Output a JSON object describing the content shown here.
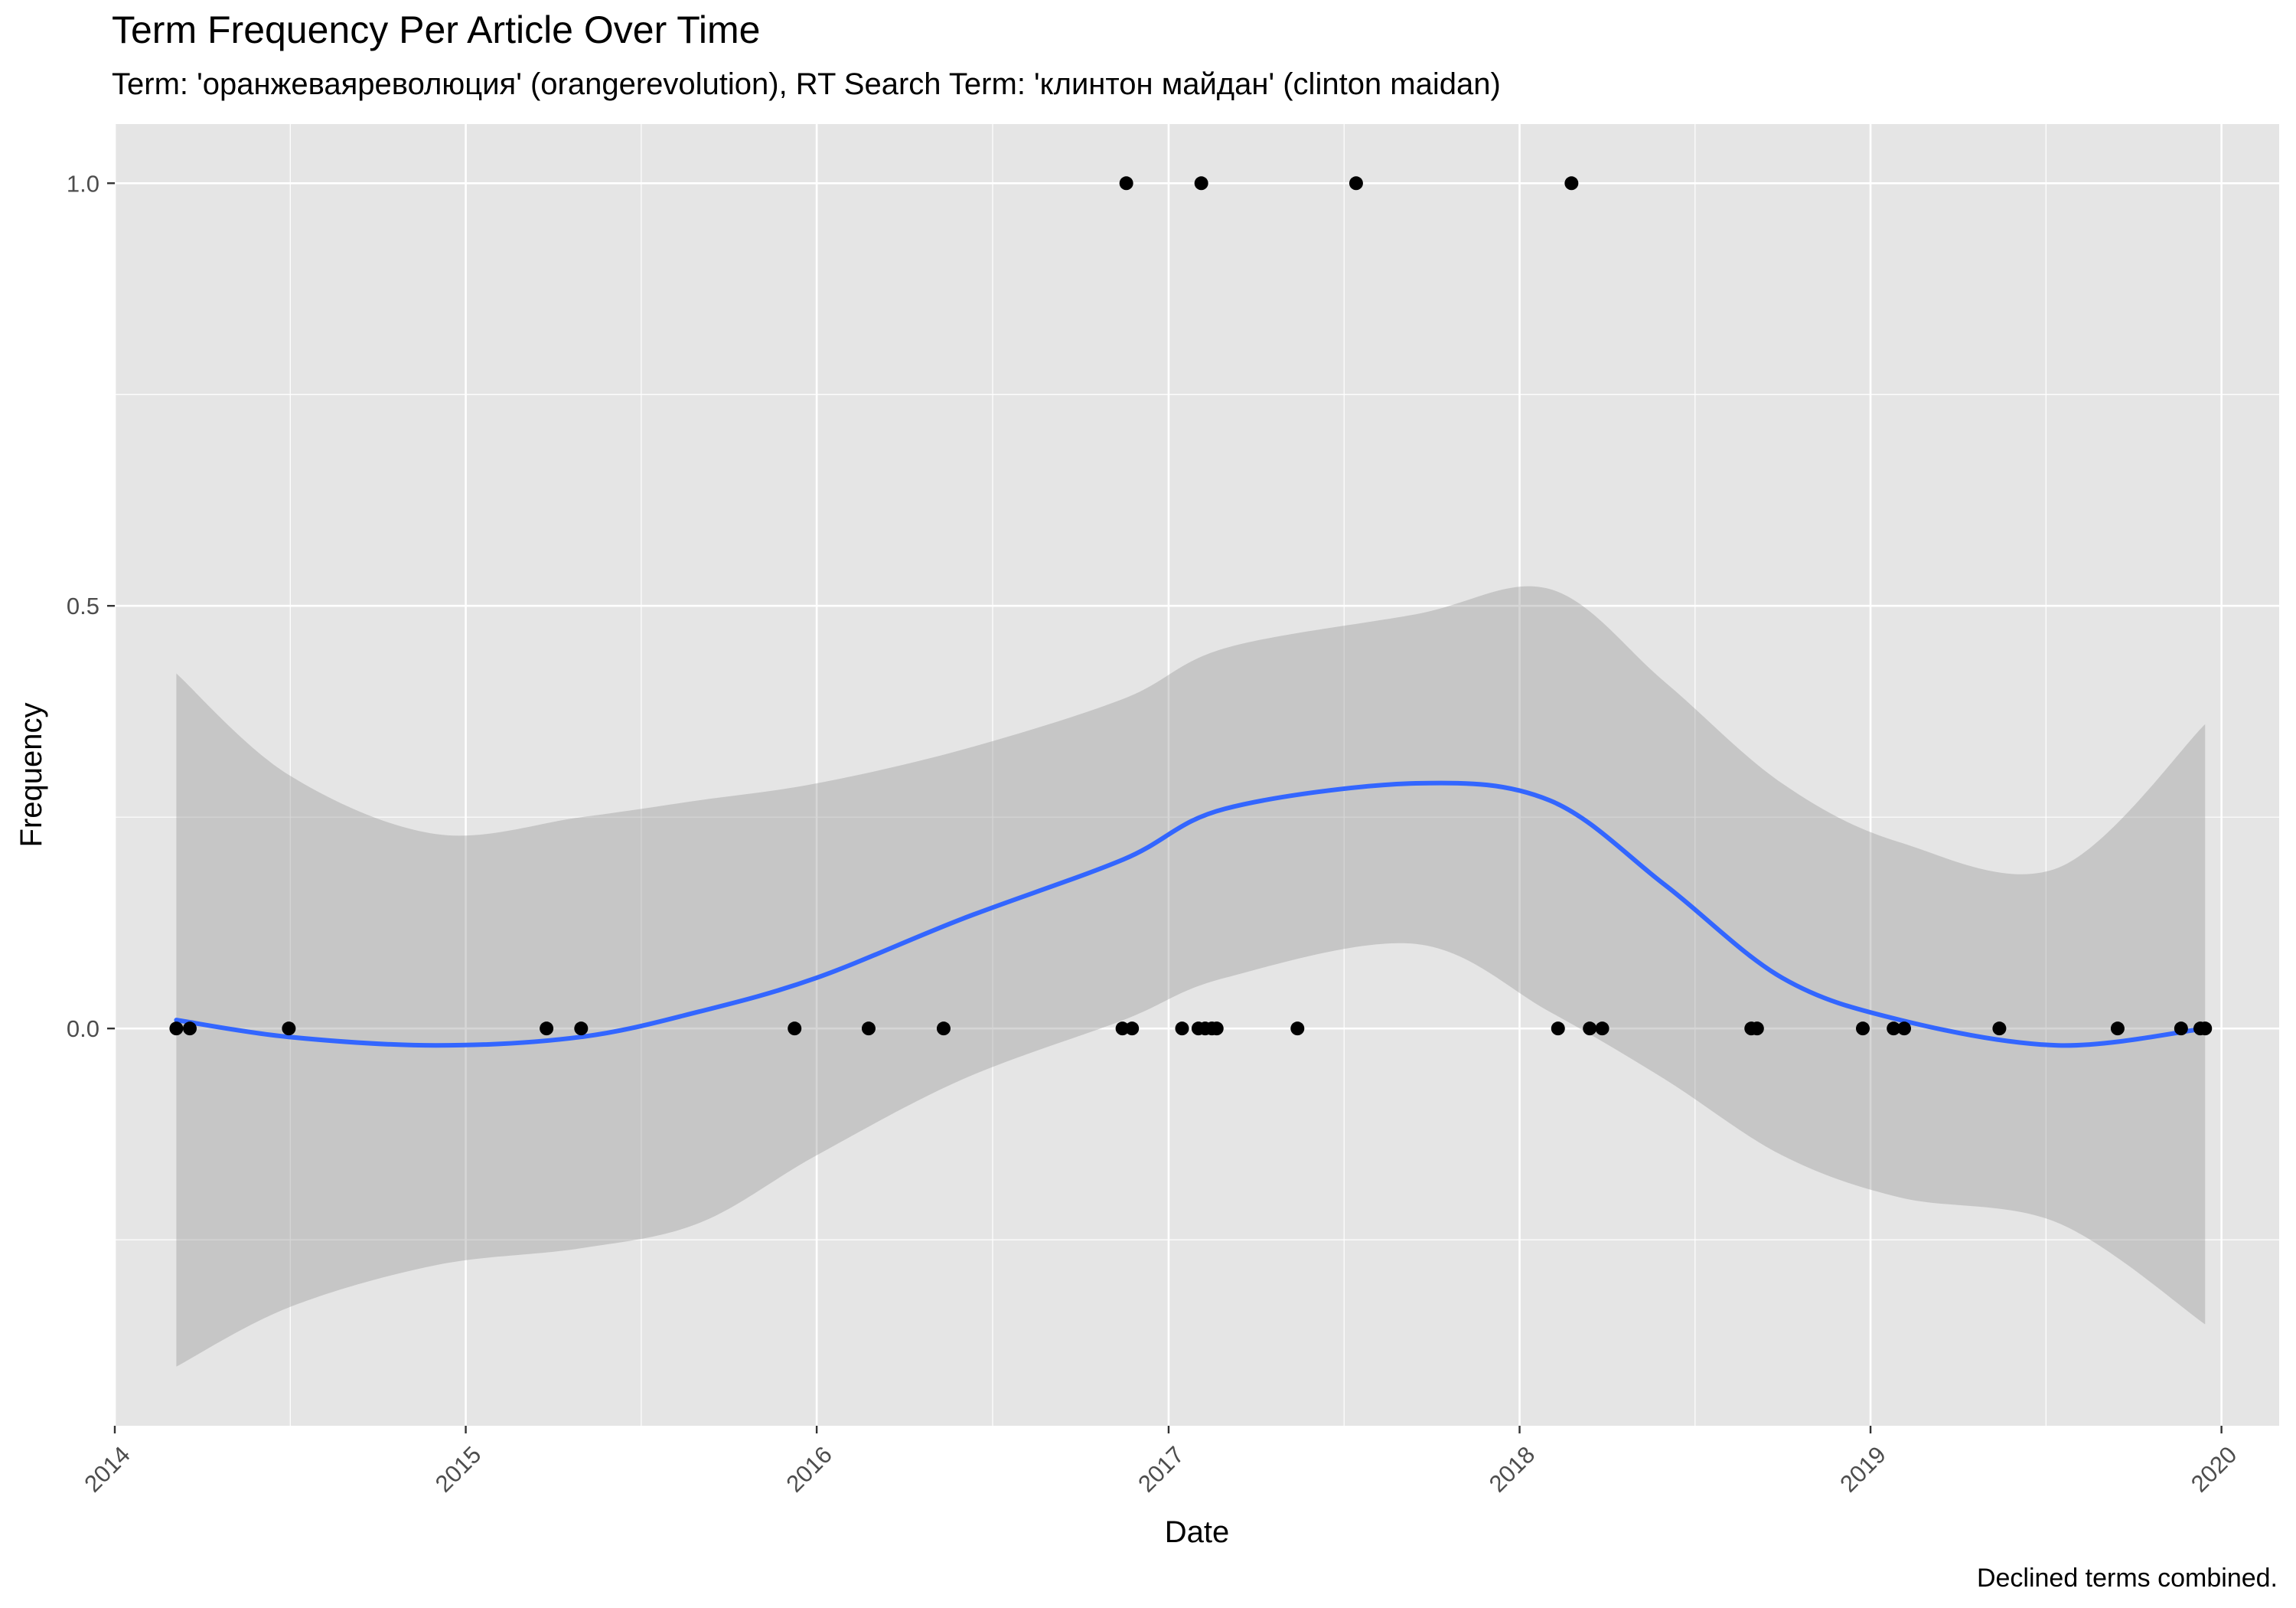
{
  "chart_data": {
    "type": "scatter",
    "title": "Term Frequency Per Article Over Time",
    "subtitle": "Term: 'оранжеваяреволюция' (orangerevolution), RT Search Term: 'клинтон майдан' (clinton maidan)",
    "caption": "Declined terms combined.",
    "xlabel": "Date",
    "ylabel": "Frequency",
    "x_tick_labels": [
      "2014",
      "2015",
      "2016",
      "2017",
      "2018",
      "2019",
      "2020"
    ],
    "y_tick_labels": [
      "0.0",
      "0.5",
      "1.0"
    ],
    "xlim": [
      "2014-01-01",
      "2020-03-01"
    ],
    "ylim": [
      -0.47,
      1.07
    ],
    "grid": true,
    "colors": {
      "panel_background": "#e5e5e5",
      "grid": "#ffffff",
      "points": "#000000",
      "smooth_line": "#3366ff",
      "confidence_band": "#999999"
    },
    "series": [
      {
        "type": "scatter",
        "points": [
          {
            "x": "2014-03-06",
            "y": 0
          },
          {
            "x": "2014-03-20",
            "y": 0
          },
          {
            "x": "2014-07-01",
            "y": 0
          },
          {
            "x": "2015-03-26",
            "y": 0
          },
          {
            "x": "2015-05-01",
            "y": 0
          },
          {
            "x": "2015-12-09",
            "y": 0
          },
          {
            "x": "2016-02-24",
            "y": 0
          },
          {
            "x": "2016-05-12",
            "y": 0
          },
          {
            "x": "2016-11-14",
            "y": 0
          },
          {
            "x": "2016-11-18",
            "y": 1
          },
          {
            "x": "2016-11-24",
            "y": 0
          },
          {
            "x": "2017-01-15",
            "y": 0
          },
          {
            "x": "2017-02-01",
            "y": 0
          },
          {
            "x": "2017-02-04",
            "y": 1
          },
          {
            "x": "2017-02-08",
            "y": 0
          },
          {
            "x": "2017-02-15",
            "y": 0
          },
          {
            "x": "2017-02-20",
            "y": 0
          },
          {
            "x": "2017-05-15",
            "y": 0
          },
          {
            "x": "2017-07-15",
            "y": 1
          },
          {
            "x": "2018-02-10",
            "y": 0
          },
          {
            "x": "2018-02-24",
            "y": 1
          },
          {
            "x": "2018-03-15",
            "y": 0
          },
          {
            "x": "2018-03-28",
            "y": 0
          },
          {
            "x": "2018-08-30",
            "y": 0
          },
          {
            "x": "2018-09-05",
            "y": 0
          },
          {
            "x": "2018-12-24",
            "y": 0
          },
          {
            "x": "2019-01-25",
            "y": 0
          },
          {
            "x": "2019-02-05",
            "y": 0
          },
          {
            "x": "2019-05-15",
            "y": 0
          },
          {
            "x": "2019-09-15",
            "y": 0
          },
          {
            "x": "2019-11-20",
            "y": 0
          },
          {
            "x": "2019-12-10",
            "y": 0
          },
          {
            "x": "2019-12-15",
            "y": 0
          }
        ]
      },
      {
        "type": "line",
        "points": [
          {
            "x": "2014-03-06",
            "y": 0.01
          },
          {
            "x": "2014-07-01",
            "y": -0.01
          },
          {
            "x": "2014-12-01",
            "y": -0.02
          },
          {
            "x": "2015-05-01",
            "y": -0.01
          },
          {
            "x": "2015-09-01",
            "y": 0.02
          },
          {
            "x": "2016-01-01",
            "y": 0.06
          },
          {
            "x": "2016-06-01",
            "y": 0.13
          },
          {
            "x": "2016-11-15",
            "y": 0.2
          },
          {
            "x": "2017-03-01",
            "y": 0.26
          },
          {
            "x": "2017-09-15",
            "y": 0.29
          },
          {
            "x": "2018-02-01",
            "y": 0.27
          },
          {
            "x": "2018-06-01",
            "y": 0.17
          },
          {
            "x": "2018-10-01",
            "y": 0.06
          },
          {
            "x": "2019-02-01",
            "y": 0.01
          },
          {
            "x": "2019-07-15",
            "y": -0.02
          },
          {
            "x": "2019-12-15",
            "y": 0.0
          }
        ]
      },
      {
        "type": "area",
        "points": [
          {
            "x": "2014-03-06",
            "ymin": -0.4,
            "ymax": 0.42
          },
          {
            "x": "2014-07-01",
            "ymin": -0.33,
            "ymax": 0.3
          },
          {
            "x": "2014-12-01",
            "ymin": -0.28,
            "ymax": 0.23
          },
          {
            "x": "2015-05-01",
            "ymin": -0.26,
            "ymax": 0.25
          },
          {
            "x": "2015-09-01",
            "ymin": -0.23,
            "ymax": 0.27
          },
          {
            "x": "2016-01-01",
            "ymin": -0.15,
            "ymax": 0.29
          },
          {
            "x": "2016-06-01",
            "ymin": -0.06,
            "ymax": 0.33
          },
          {
            "x": "2016-11-15",
            "ymin": 0.01,
            "ymax": 0.39
          },
          {
            "x": "2017-03-01",
            "ymin": 0.06,
            "ymax": 0.45
          },
          {
            "x": "2017-09-15",
            "ymin": 0.1,
            "ymax": 0.49
          },
          {
            "x": "2018-02-01",
            "ymin": 0.02,
            "ymax": 0.52
          },
          {
            "x": "2018-06-01",
            "ymin": -0.06,
            "ymax": 0.41
          },
          {
            "x": "2018-10-01",
            "ymin": -0.15,
            "ymax": 0.29
          },
          {
            "x": "2019-02-01",
            "ymin": -0.2,
            "ymax": 0.22
          },
          {
            "x": "2019-07-15",
            "ymin": -0.23,
            "ymax": 0.19
          },
          {
            "x": "2019-12-15",
            "ymin": -0.35,
            "ymax": 0.36
          }
        ]
      }
    ]
  }
}
